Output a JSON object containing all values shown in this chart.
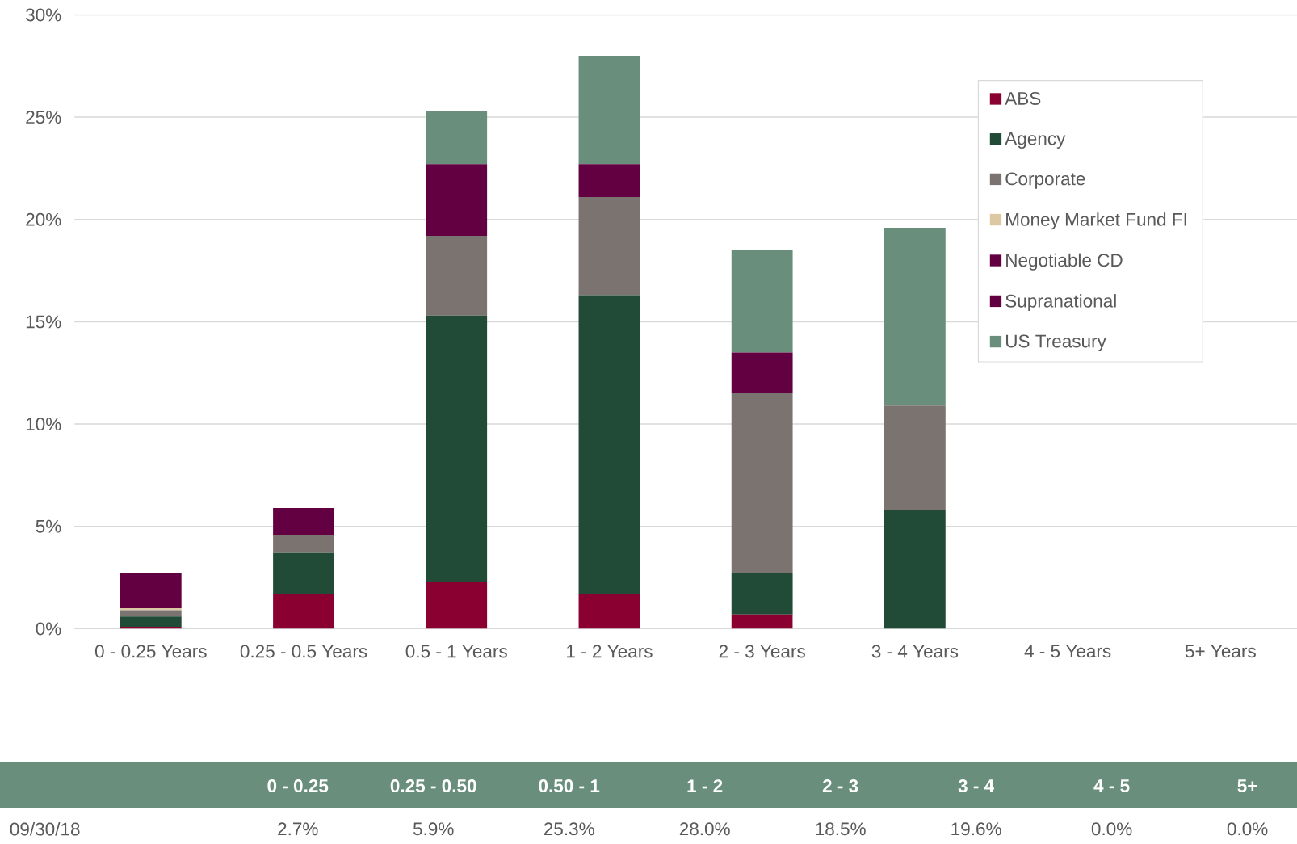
{
  "chart_data": {
    "type": "bar",
    "stacked": true,
    "categories": [
      "0 - 0.25 Years",
      "0.25 - 0.5 Years",
      "0.5 - 1 Years",
      "1 - 2 Years",
      "2 - 3 Years",
      "3 - 4 Years",
      "4 - 5 Years",
      "5+ Years"
    ],
    "series": [
      {
        "name": "ABS",
        "color": "#8a0030",
        "values": [
          0.1,
          1.7,
          2.3,
          1.7,
          0.7,
          0,
          0,
          0
        ]
      },
      {
        "name": "Agency",
        "color": "#214a37",
        "values": [
          0.5,
          2.0,
          13.0,
          14.6,
          2.0,
          5.8,
          0,
          0
        ]
      },
      {
        "name": "Corporate",
        "color": "#7b736f",
        "values": [
          0.3,
          0.9,
          3.9,
          4.8,
          8.8,
          5.1,
          0,
          0
        ]
      },
      {
        "name": "Money Market Fund FI",
        "color": "#dcc9a3",
        "values": [
          0.1,
          0,
          0,
          0,
          0,
          0,
          0,
          0
        ]
      },
      {
        "name": "Negotiable CD",
        "color": "#620042",
        "values": [
          0.7,
          0,
          3.0,
          0,
          0,
          0,
          0,
          0
        ]
      },
      {
        "name": "Supranational",
        "color": "#620042",
        "values": [
          1.0,
          1.3,
          0.5,
          1.6,
          2.0,
          0,
          0,
          0
        ]
      },
      {
        "name": "US Treasury",
        "color": "#698f7c",
        "values": [
          0,
          0,
          2.6,
          5.3,
          5.0,
          8.7,
          0,
          0
        ]
      }
    ],
    "ylim": [
      0,
      30
    ],
    "yticks": [
      {
        "value": 0,
        "label": "0%"
      },
      {
        "value": 5,
        "label": "5%"
      },
      {
        "value": 10,
        "label": "10%"
      },
      {
        "value": 15,
        "label": "15%"
      },
      {
        "value": 20,
        "label": "20%"
      },
      {
        "value": 25,
        "label": "25%"
      },
      {
        "value": 30,
        "label": "30%"
      }
    ],
    "grid": "y",
    "legend": "top right",
    "annotations": [
      "09/30/18",
      "0 - 0.25",
      "0.25 - 0.50",
      "0.50 - 1",
      "1 - 2",
      "2 - 3",
      "3 - 4",
      "4 - 5",
      "5+",
      "2.7%",
      "5.9%",
      "25.3%",
      "28.0%",
      "18.5%",
      "19.6%",
      "0.0%",
      "0.0%"
    ]
  }
}
